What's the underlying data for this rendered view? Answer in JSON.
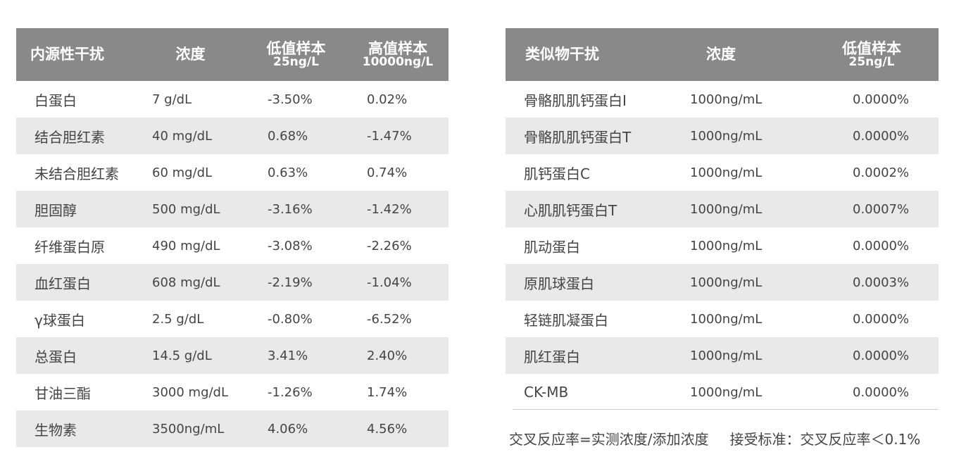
{
  "endogenous": {
    "headers": {
      "col1": "内源性干扰",
      "col2": "浓度",
      "col3": "低值样本",
      "col3_sub": "25ng/L",
      "col4": "高值样本",
      "col4_sub": "10000ng/L"
    },
    "rows": [
      {
        "name": "白蛋白",
        "conc": "7 g/dL",
        "low": "-3.50%",
        "high": "0.02%"
      },
      {
        "name": "结合胆红素",
        "conc": "40 mg/dL",
        "low": "0.68%",
        "high": "-1.47%"
      },
      {
        "name": "未结合胆红素",
        "conc": "60 mg/dL",
        "low": "0.63%",
        "high": "0.74%"
      },
      {
        "name": "胆固醇",
        "conc": "500 mg/dL",
        "low": "-3.16%",
        "high": "-1.42%"
      },
      {
        "name": "纤维蛋白原",
        "conc": "490 mg/dL",
        "low": "-3.08%",
        "high": "-2.26%"
      },
      {
        "name": "血红蛋白",
        "conc": "608 mg/dL",
        "low": "-2.19%",
        "high": "-1.04%"
      },
      {
        "name": "γ球蛋白",
        "conc": "2.5 g/dL",
        "low": "-0.80%",
        "high": "-6.52%"
      },
      {
        "name": "总蛋白",
        "conc": "14.5 g/dL",
        "low": "3.41%",
        "high": "2.40%"
      },
      {
        "name": "甘油三酯",
        "conc": "3000 mg/dL",
        "low": "-1.26%",
        "high": "1.74%"
      },
      {
        "name": "生物素",
        "conc": "3500ng/mL",
        "low": "4.06%",
        "high": "4.56%"
      }
    ]
  },
  "analog": {
    "headers": {
      "col1": "类似物干扰",
      "col2": "浓度",
      "col3": "低值样本",
      "col3_sub": "25ng/L"
    },
    "rows": [
      {
        "name": "骨骼肌肌钙蛋白I",
        "conc": "1000ng/mL",
        "low": "0.0000%"
      },
      {
        "name": "骨骼肌肌钙蛋白T",
        "conc": "1000ng/mL",
        "low": "0.0000%"
      },
      {
        "name": "肌钙蛋白C",
        "conc": "1000ng/mL",
        "low": "0.0002%"
      },
      {
        "name": "心肌肌钙蛋白T",
        "conc": "1000ng/mL",
        "low": "0.0007%"
      },
      {
        "name": "肌动蛋白",
        "conc": "1000ng/mL",
        "low": "0.0000%"
      },
      {
        "name": "原肌球蛋白",
        "conc": "1000ng/mL",
        "low": "0.0003%"
      },
      {
        "name": "轻链肌凝蛋白",
        "conc": "1000ng/mL",
        "low": "0.0000%"
      },
      {
        "name": "肌红蛋白",
        "conc": "1000ng/mL",
        "low": "0.0000%"
      },
      {
        "name": "CK-MB",
        "conc": "1000ng/mL",
        "low": "0.0000%"
      }
    ]
  },
  "note": {
    "formula": "交叉反应率=实测浓度/添加浓度",
    "criteria": "接受标准：交叉反应率＜0.1%"
  }
}
